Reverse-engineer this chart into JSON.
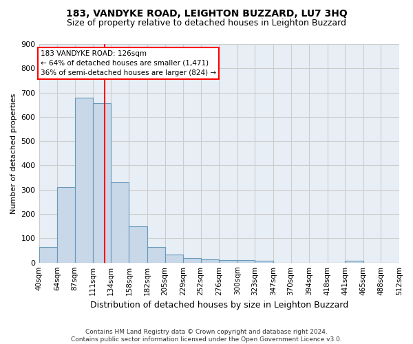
{
  "title": "183, VANDYKE ROAD, LEIGHTON BUZZARD, LU7 3HQ",
  "subtitle": "Size of property relative to detached houses in Leighton Buzzard",
  "xlabel": "Distribution of detached houses by size in Leighton Buzzard",
  "ylabel": "Number of detached properties",
  "footer": "Contains HM Land Registry data © Crown copyright and database right 2024.\nContains public sector information licensed under the Open Government Licence v3.0.",
  "bin_labels": [
    "40sqm",
    "64sqm",
    "87sqm",
    "111sqm",
    "134sqm",
    "158sqm",
    "182sqm",
    "205sqm",
    "229sqm",
    "252sqm",
    "276sqm",
    "300sqm",
    "323sqm",
    "347sqm",
    "370sqm",
    "394sqm",
    "418sqm",
    "441sqm",
    "465sqm",
    "488sqm",
    "512sqm"
  ],
  "bar_heights": [
    63,
    310,
    680,
    655,
    330,
    150,
    63,
    33,
    20,
    12,
    10,
    10,
    8,
    0,
    0,
    0,
    0,
    8,
    0,
    0,
    0
  ],
  "bar_color": "#c8d8e8",
  "bar_edge_color": "#6699bb",
  "grid_color": "#cccccc",
  "background_color": "#e8eef5",
  "annotation_text": "183 VANDYKE ROAD: 126sqm\n← 64% of detached houses are smaller (1,471)\n36% of semi-detached houses are larger (824) →",
  "annotation_box_color": "white",
  "annotation_box_edge_color": "red",
  "vline_color": "red",
  "vline_x_bin": 3,
  "ylim": [
    0,
    900
  ],
  "yticks": [
    0,
    100,
    200,
    300,
    400,
    500,
    600,
    700,
    800,
    900
  ],
  "bin_edges": [
    40,
    64,
    87,
    111,
    134,
    158,
    182,
    205,
    229,
    252,
    276,
    300,
    323,
    347,
    370,
    394,
    418,
    441,
    465,
    488,
    512
  ],
  "title_fontsize": 10,
  "subtitle_fontsize": 9,
  "footer_fontsize": 6.5,
  "ylabel_fontsize": 8,
  "xlabel_fontsize": 9
}
